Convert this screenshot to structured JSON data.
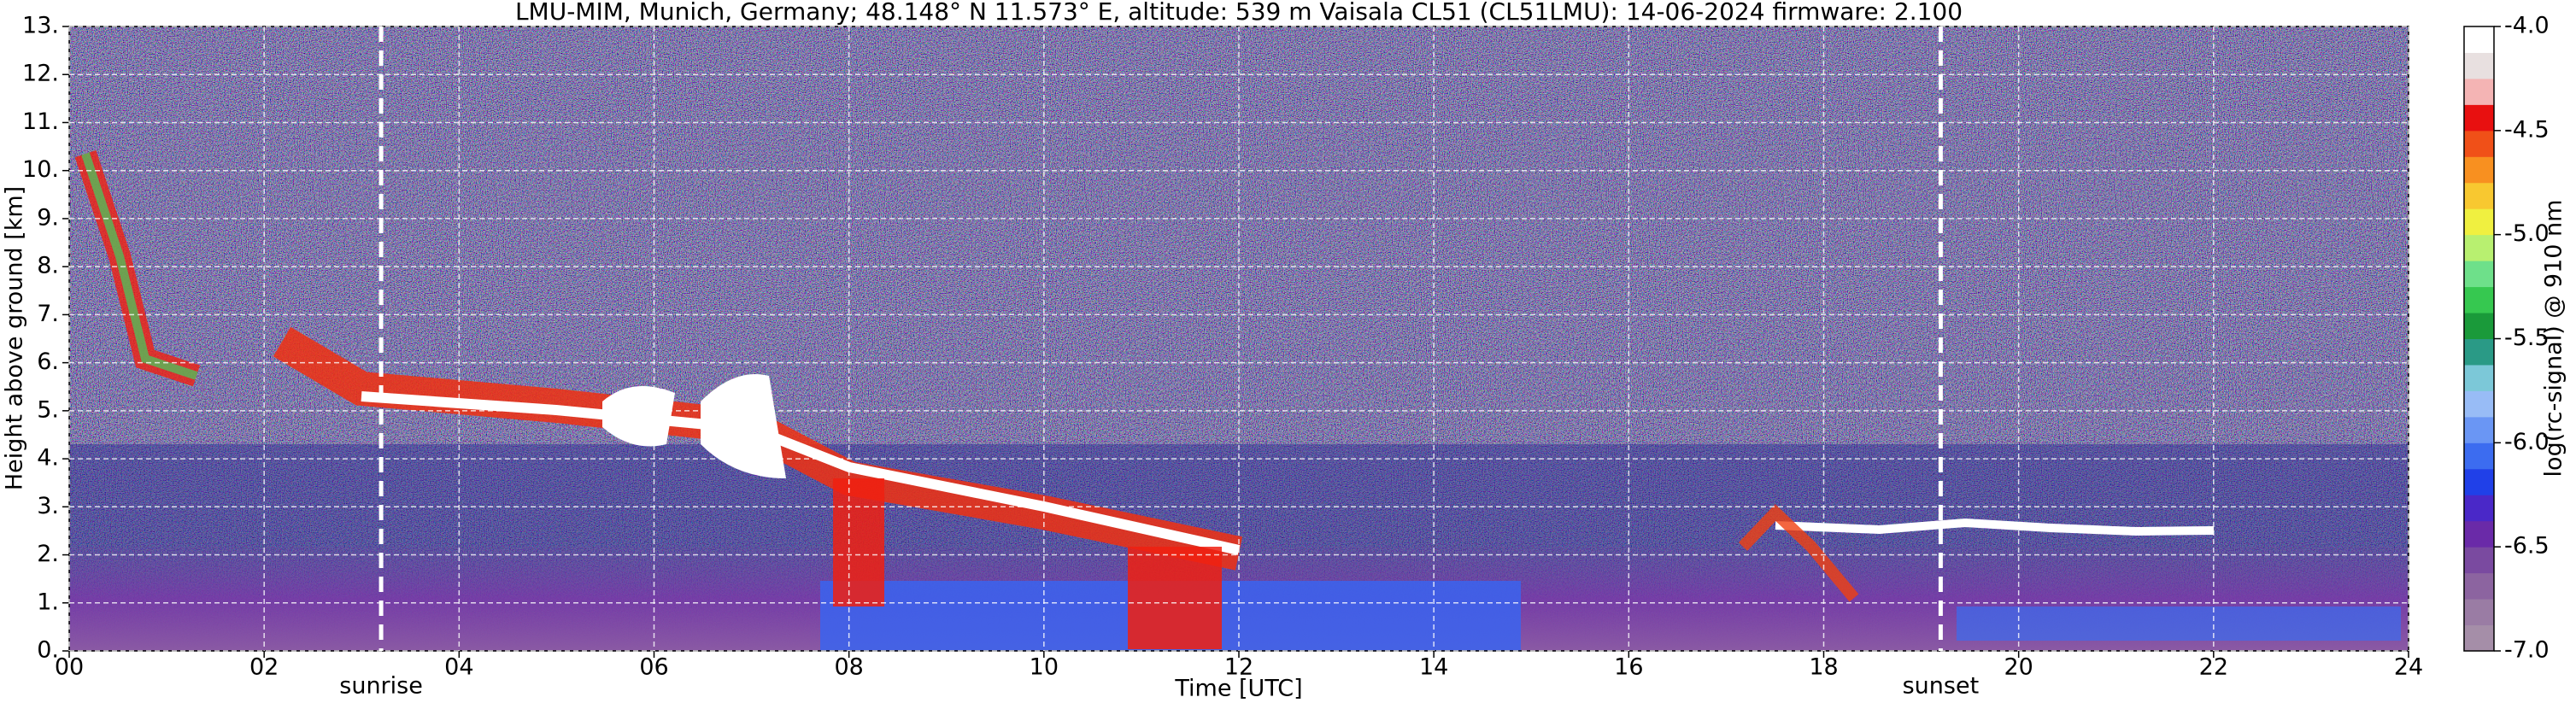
{
  "chart_data": {
    "type": "heatmap",
    "title": "LMU-MIM, Munich, Germany; 48.148° N 11.573° E, altitude: 539 m    Vaisala CL51 (CL51LMU): 14-06-2024    firmware: 2.100",
    "x_label": "Time [UTC]",
    "y_label": "Height above ground [km]",
    "xlim": [
      0,
      24
    ],
    "xticks": [
      {
        "value": 0,
        "label": "00"
      },
      {
        "value": 2,
        "label": "02"
      },
      {
        "value": 4,
        "label": "04"
      },
      {
        "value": 6,
        "label": "06"
      },
      {
        "value": 8,
        "label": "08"
      },
      {
        "value": 10,
        "label": "10"
      },
      {
        "value": 12,
        "label": "12"
      },
      14,
      16,
      18,
      20,
      22,
      24
    ],
    "ylim": [
      0,
      13
    ],
    "yticks": [
      {
        "value": 0,
        "label": "0."
      },
      {
        "value": 1,
        "label": "1."
      },
      {
        "value": 2,
        "label": "2."
      },
      {
        "value": 3,
        "label": "3."
      },
      {
        "value": 4,
        "label": "4."
      },
      {
        "value": 5,
        "label": "5."
      },
      {
        "value": 6,
        "label": "6."
      },
      {
        "value": 7,
        "label": "7."
      },
      {
        "value": 8,
        "label": "8."
      },
      {
        "value": 9,
        "label": "9."
      },
      {
        "value": 10,
        "label": "10."
      },
      {
        "value": 11,
        "label": "11."
      },
      {
        "value": 12,
        "label": "12."
      },
      {
        "value": 13,
        "label": "13."
      }
    ],
    "grid": true,
    "annotations": [
      {
        "text": "sunrise",
        "x": 3.2
      },
      {
        "text": "sunset",
        "x": 19.2
      }
    ],
    "colorbar": {
      "label": "log(rc-signal) @ 910 nm",
      "lim": [
        -7,
        -4
      ],
      "ticks": [
        {
          "value": -4,
          "label": "-4.0"
        },
        -4.5,
        {
          "value": -5,
          "label": "-5.0"
        },
        -5.5,
        {
          "value": -6,
          "label": "-6.0"
        },
        -6.5,
        {
          "value": -7,
          "label": "-7.0"
        }
      ],
      "colors": [
        "#a58ea8",
        "#9a7ca4",
        "#8c64a0",
        "#7a4aa0",
        "#6a2aa8",
        "#4a28c8",
        "#2040e8",
        "#3c6cf0",
        "#6a96f4",
        "#98bcf6",
        "#7cc8d8",
        "#2a9a86",
        "#1a9a3a",
        "#36c850",
        "#6ee08a",
        "#b8f070",
        "#f0f040",
        "#f8c830",
        "#f89020",
        "#f05018",
        "#e81010",
        "#f4b4b4",
        "#e8e0e0",
        "#ffffff"
      ]
    }
  }
}
